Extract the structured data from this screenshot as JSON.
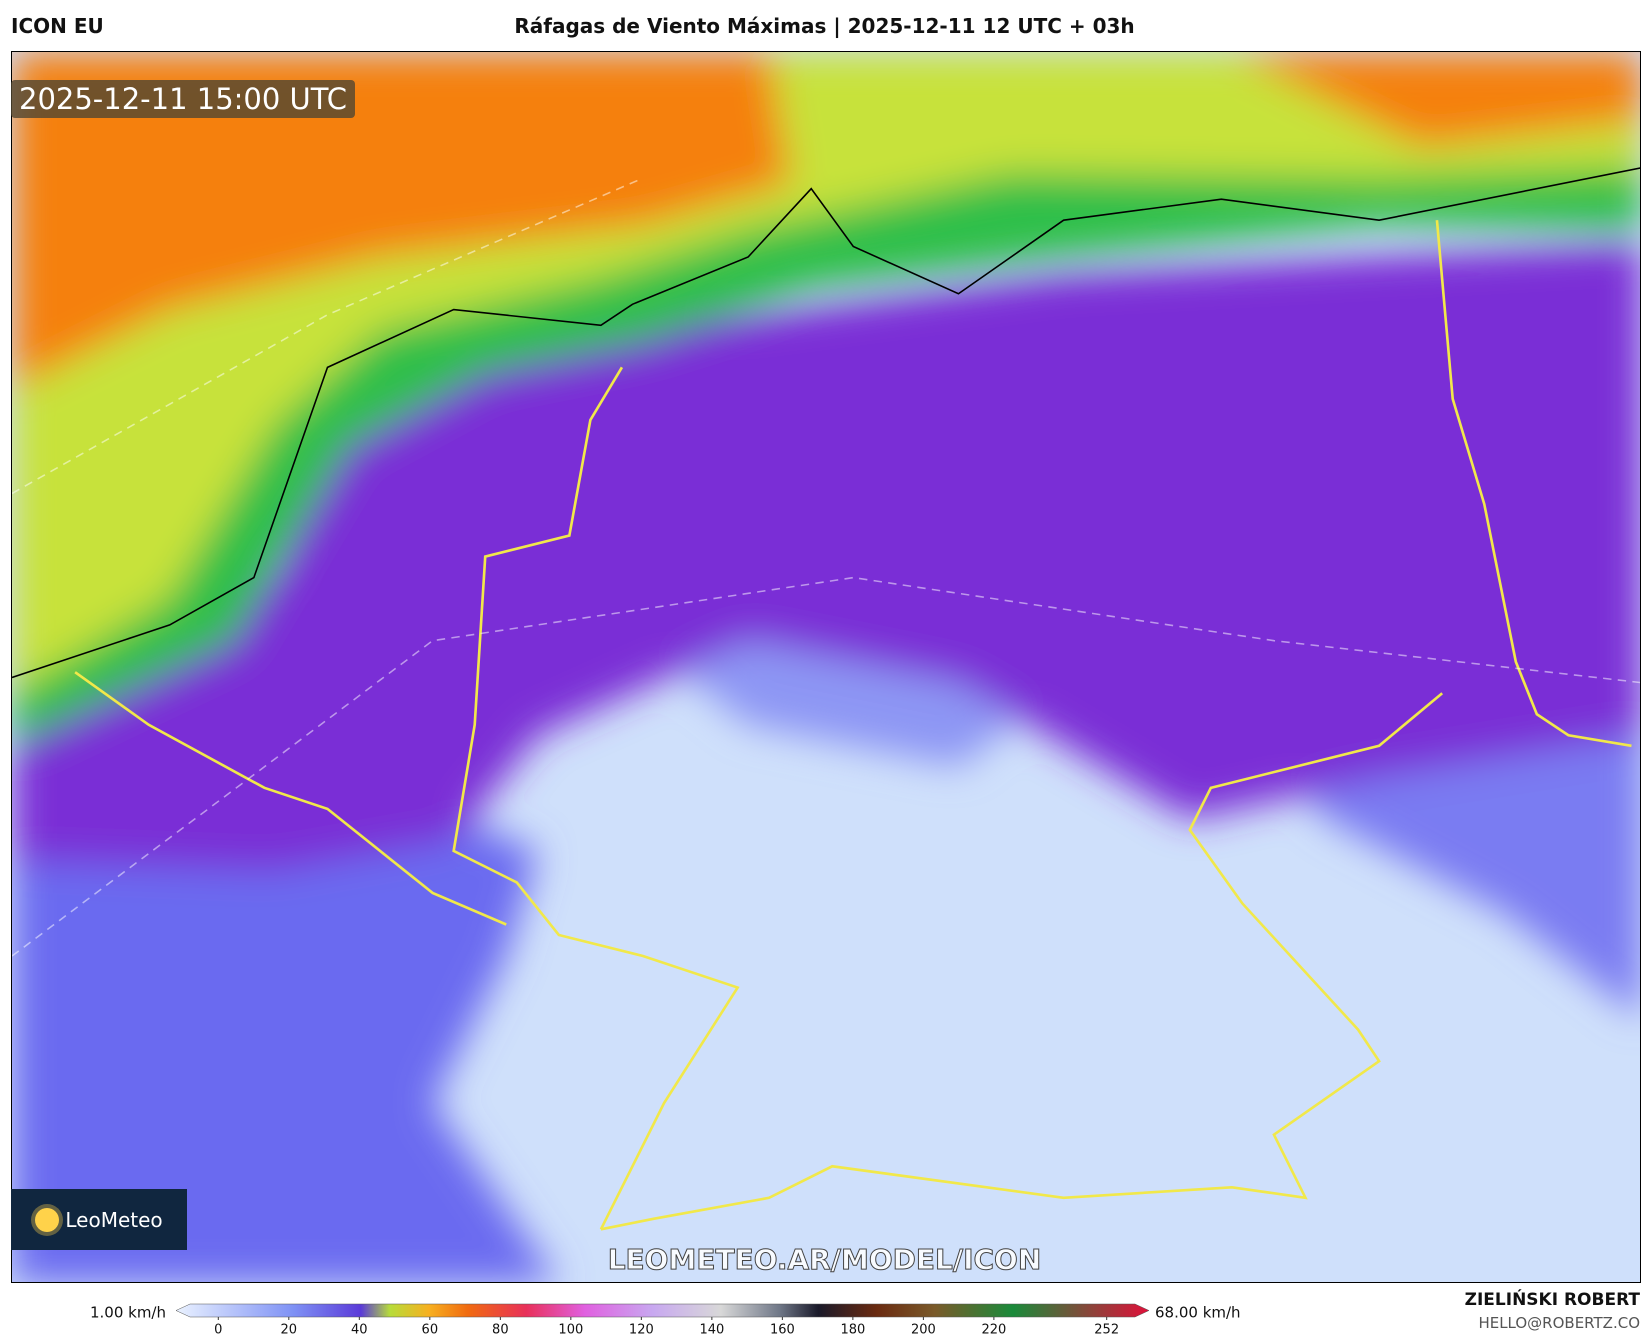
{
  "header": {
    "model": "ICON EU",
    "title": "Ráfagas de Viento Máximas | 2025-12-11 12 UTC + 03h"
  },
  "map": {
    "timestamp": "2025-12-11 15:00 UTC",
    "watermark": "LEOMETEO.AR/MODEL/ICON",
    "logo": "LeoMeteo"
  },
  "colorbar": {
    "min_label": "1.00 km/h",
    "max_label": "68.00 km/h",
    "lim": [
      -12,
      264
    ],
    "ticks": [
      0,
      20,
      40,
      60,
      80,
      100,
      120,
      140,
      160,
      180,
      200,
      220,
      252
    ]
  },
  "credits": {
    "author": "ZIELIŃSKI ROBERT",
    "email": "HELLO@ROBERTZ.CO"
  }
}
